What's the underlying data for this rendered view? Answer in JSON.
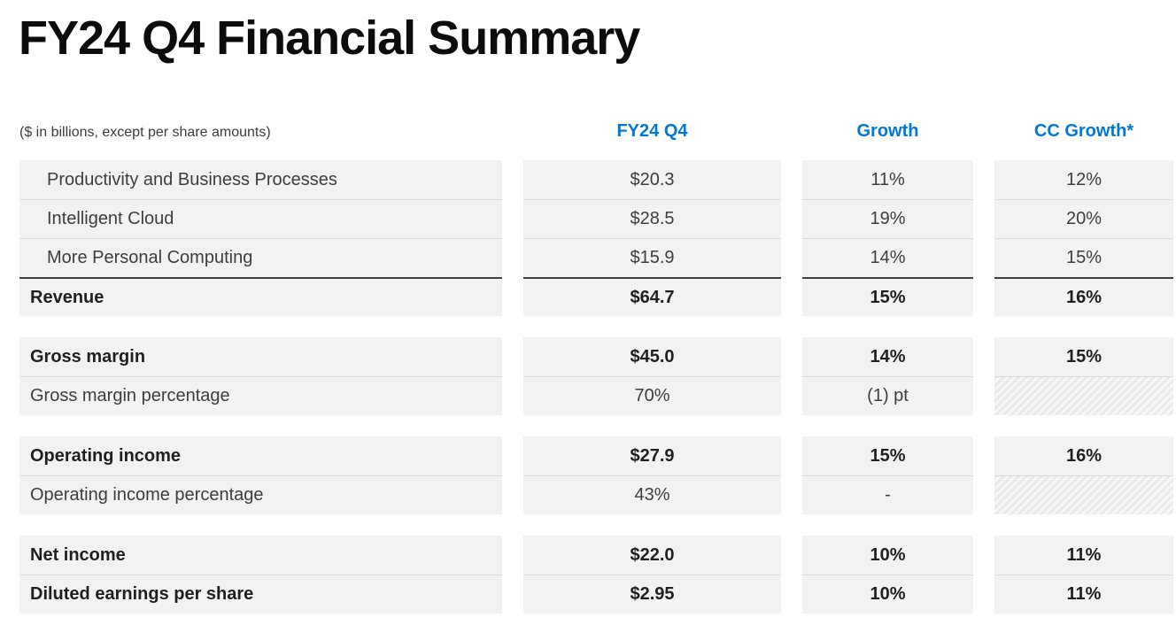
{
  "page": {
    "title": "FY24 Q4 Financial Summary",
    "units_note": "($ in billions, except per share amounts)"
  },
  "colors": {
    "accent_blue": "#0078D4",
    "row_background": "#F2F2F2",
    "row_separator": "#D9D9D9",
    "total_rule": "#404040"
  },
  "columns": [
    "FY24 Q4",
    "Growth",
    "CC Growth*"
  ],
  "groups": [
    {
      "rows": [
        {
          "label": "Productivity and Business Processes",
          "indent": true,
          "bold": false,
          "values": [
            "$20.3",
            "11%",
            "12%"
          ]
        },
        {
          "label": "Intelligent Cloud",
          "indent": true,
          "bold": false,
          "values": [
            "$28.5",
            "19%",
            "20%"
          ]
        },
        {
          "label": "More Personal Computing",
          "indent": true,
          "bold": false,
          "values": [
            "$15.9",
            "14%",
            "15%"
          ]
        },
        {
          "label": "Revenue",
          "indent": false,
          "bold": true,
          "total": true,
          "values": [
            "$64.7",
            "15%",
            "16%"
          ]
        }
      ]
    },
    {
      "rows": [
        {
          "label": "Gross margin",
          "indent": false,
          "bold": true,
          "values": [
            "$45.0",
            "14%",
            "15%"
          ]
        },
        {
          "label": "Gross margin percentage",
          "indent": false,
          "bold": false,
          "values": [
            "70%",
            "(1) pt",
            null
          ],
          "hatched": [
            false,
            false,
            true
          ]
        }
      ]
    },
    {
      "rows": [
        {
          "label": "Operating income",
          "indent": false,
          "bold": true,
          "values": [
            "$27.9",
            "15%",
            "16%"
          ]
        },
        {
          "label": "Operating income percentage",
          "indent": false,
          "bold": false,
          "values": [
            "43%",
            "-",
            null
          ],
          "hatched": [
            false,
            false,
            true
          ]
        }
      ]
    },
    {
      "rows": [
        {
          "label": "Net income",
          "indent": false,
          "bold": true,
          "values": [
            "$22.0",
            "10%",
            "11%"
          ]
        },
        {
          "label": "Diluted earnings per share",
          "indent": false,
          "bold": true,
          "values": [
            "$2.95",
            "10%",
            "11%"
          ]
        }
      ]
    }
  ]
}
